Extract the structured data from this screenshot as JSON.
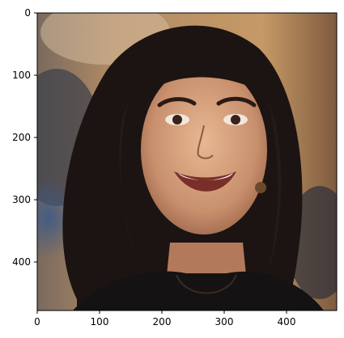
{
  "figure": {
    "image_description_name": "portrait-photo",
    "image_extent": {
      "x": [
        0,
        480
      ],
      "y": [
        480,
        0
      ]
    },
    "x_ticks": [
      "0",
      "100",
      "200",
      "300",
      "400"
    ],
    "y_ticks": [
      "0",
      "100",
      "200",
      "300",
      "400"
    ],
    "x_tick_values": [
      0,
      100,
      200,
      300,
      400
    ],
    "y_tick_values": [
      0,
      100,
      200,
      300,
      400
    ],
    "axes_color": "#000000",
    "background_color": "#ffffff"
  }
}
